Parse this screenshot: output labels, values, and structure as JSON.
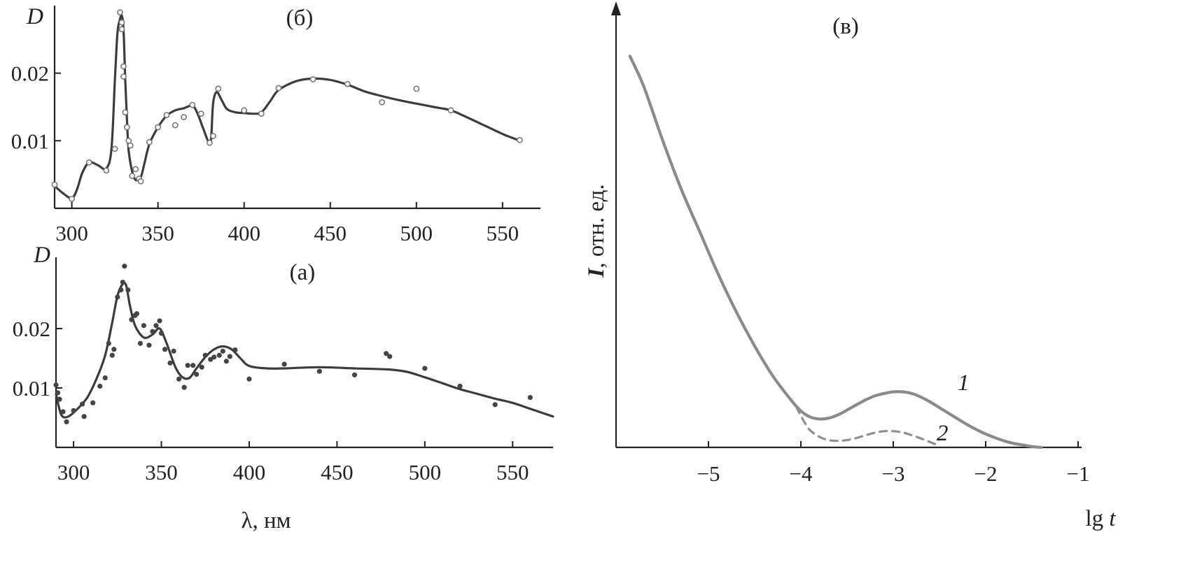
{
  "chart_data": [
    {
      "type": "line",
      "panel_label": "(б)",
      "ylabel": "D",
      "xlim": [
        290,
        572
      ],
      "ylim": [
        0,
        0.03
      ],
      "x_ticks": [
        300,
        350,
        400,
        450,
        500,
        550
      ],
      "y_ticks": [
        0.01,
        0.02
      ],
      "y_tick_labels": [
        "0.01",
        "0.02"
      ],
      "marker": "open-circle",
      "curve": {
        "x": [
          290,
          295,
          300,
          303,
          306,
          310,
          315,
          320,
          323,
          325,
          326.5,
          328,
          329,
          330,
          331,
          332,
          333,
          335,
          337,
          340,
          342,
          345,
          350,
          355,
          360,
          365,
          370,
          373,
          376,
          380,
          381,
          382,
          384,
          387,
          390,
          395,
          400,
          405,
          410,
          415,
          420,
          430,
          440,
          450,
          460,
          470,
          480,
          490,
          500,
          510,
          520,
          530,
          540,
          550,
          560
        ],
        "y": [
          0.0033,
          0.0022,
          0.0015,
          0.0028,
          0.0052,
          0.0068,
          0.0064,
          0.0059,
          0.0088,
          0.019,
          0.026,
          0.028,
          0.0285,
          0.0265,
          0.019,
          0.013,
          0.0085,
          0.0055,
          0.0042,
          0.0046,
          0.0065,
          0.0095,
          0.012,
          0.0137,
          0.0145,
          0.0148,
          0.0152,
          0.014,
          0.012,
          0.0095,
          0.011,
          0.0155,
          0.0172,
          0.016,
          0.0147,
          0.0142,
          0.0141,
          0.014,
          0.0142,
          0.0158,
          0.0175,
          0.0188,
          0.0192,
          0.019,
          0.0183,
          0.0173,
          0.0166,
          0.016,
          0.0155,
          0.015,
          0.0145,
          0.0134,
          0.0122,
          0.011,
          0.01
        ]
      },
      "points": {
        "x": [
          290,
          300,
          310,
          320,
          325,
          328,
          329,
          329,
          330,
          330,
          331,
          332,
          333,
          334,
          335,
          337,
          339,
          340,
          345,
          350,
          355,
          360,
          365,
          370,
          375,
          380,
          382,
          385,
          400,
          410,
          420,
          440,
          460,
          480,
          500,
          520,
          560
        ],
        "y": [
          0.0035,
          0.0014,
          0.0068,
          0.0056,
          0.0088,
          0.029,
          0.0275,
          0.0265,
          0.021,
          0.0195,
          0.0142,
          0.012,
          0.01,
          0.0093,
          0.0048,
          0.0058,
          0.0044,
          0.004,
          0.0098,
          0.012,
          0.0138,
          0.0123,
          0.0135,
          0.0153,
          0.014,
          0.0097,
          0.0107,
          0.0177,
          0.0145,
          0.014,
          0.0178,
          0.0191,
          0.0184,
          0.0157,
          0.0177,
          0.0145,
          0.0101
        ]
      }
    },
    {
      "type": "line",
      "panel_label": "(а)",
      "ylabel": "D",
      "xlabel": "λ, нм",
      "xlim": [
        290,
        573
      ],
      "ylim": [
        0,
        0.032
      ],
      "x_ticks": [
        300,
        350,
        400,
        450,
        500,
        550
      ],
      "y_ticks": [
        0.01,
        0.02
      ],
      "y_tick_labels": [
        "0.01",
        "0.02"
      ],
      "marker": "filled-dot",
      "curve": {
        "x": [
          290,
          293,
          297,
          303,
          308,
          313,
          318,
          322,
          325,
          328,
          330,
          332,
          335,
          340,
          345,
          349,
          353,
          358,
          362,
          366,
          370,
          375,
          380,
          385,
          390,
          395,
          400,
          410,
          420,
          440,
          460,
          480,
          490,
          500,
          510,
          520,
          530,
          540,
          550,
          560,
          573
        ],
        "y": [
          0.009,
          0.0055,
          0.0052,
          0.0067,
          0.0085,
          0.0115,
          0.0155,
          0.021,
          0.0255,
          0.0275,
          0.0272,
          0.024,
          0.0205,
          0.0185,
          0.019,
          0.02,
          0.0175,
          0.0135,
          0.0118,
          0.0117,
          0.0133,
          0.0152,
          0.0165,
          0.017,
          0.0165,
          0.015,
          0.0137,
          0.0133,
          0.0133,
          0.0135,
          0.0133,
          0.0131,
          0.0127,
          0.0118,
          0.0108,
          0.0098,
          0.009,
          0.0082,
          0.0075,
          0.0065,
          0.0052
        ]
      },
      "points": {
        "x": [
          290,
          291,
          292,
          294,
          296,
          300,
          305,
          306,
          311,
          315,
          318,
          320,
          322,
          323,
          325,
          327,
          328,
          329,
          331,
          333,
          335,
          336,
          338,
          340,
          343,
          345,
          347,
          349,
          350,
          352,
          355,
          357,
          360,
          363,
          365,
          368,
          370,
          373,
          375,
          378,
          380,
          383,
          385,
          387,
          389,
          392,
          400,
          420,
          440,
          460,
          478,
          480,
          500,
          520,
          540,
          560
        ],
        "y": [
          0.0105,
          0.0092,
          0.0081,
          0.006,
          0.0043,
          0.0062,
          0.0073,
          0.0052,
          0.0075,
          0.0103,
          0.0117,
          0.0175,
          0.0155,
          0.0165,
          0.0253,
          0.0265,
          0.0278,
          0.0305,
          0.0265,
          0.0215,
          0.0222,
          0.0225,
          0.0175,
          0.0205,
          0.0172,
          0.0195,
          0.0205,
          0.0213,
          0.0192,
          0.0165,
          0.0142,
          0.0162,
          0.0115,
          0.0101,
          0.0138,
          0.0138,
          0.0123,
          0.0135,
          0.0155,
          0.0148,
          0.0152,
          0.0155,
          0.0162,
          0.0145,
          0.0153,
          0.0164,
          0.0115,
          0.014,
          0.0128,
          0.0122,
          0.0158,
          0.0153,
          0.0133,
          0.0103,
          0.0072,
          0.0084
        ]
      }
    },
    {
      "type": "line",
      "panel_label": "(в)",
      "ylabel_italic": "I",
      "ylabel_rest": ", отн. ед.",
      "xlabel_prefix": "lg ",
      "xlabel_italic": "t",
      "xlim": [
        -6.05,
        -1.0
      ],
      "ylim": [
        0,
        1
      ],
      "x_ticks": [
        -5,
        -4,
        -3,
        -2,
        -1
      ],
      "x_tick_labels": [
        "−5",
        "−4",
        "−3",
        "−2",
        "−1"
      ],
      "series": [
        {
          "name": "1",
          "style": "solid",
          "x": [
            -5.85,
            -5.7,
            -5.5,
            -5.3,
            -5.1,
            -4.9,
            -4.7,
            -4.5,
            -4.3,
            -4.1,
            -4.0,
            -3.9,
            -3.8,
            -3.7,
            -3.6,
            -3.5,
            -3.4,
            -3.3,
            -3.2,
            -3.1,
            -3.0,
            -2.9,
            -2.8,
            -2.7,
            -2.6,
            -2.5,
            -2.4,
            -2.3,
            -2.2,
            -2.1,
            -2.0,
            -1.9,
            -1.8,
            -1.7,
            -1.6,
            -1.5,
            -1.4
          ],
          "y": [
            0.965,
            0.89,
            0.76,
            0.64,
            0.535,
            0.43,
            0.335,
            0.25,
            0.175,
            0.115,
            0.09,
            0.075,
            0.07,
            0.072,
            0.08,
            0.092,
            0.105,
            0.117,
            0.127,
            0.133,
            0.137,
            0.137,
            0.133,
            0.124,
            0.112,
            0.098,
            0.084,
            0.07,
            0.056,
            0.044,
            0.033,
            0.024,
            0.016,
            0.01,
            0.006,
            0.002,
            0.0
          ]
        },
        {
          "name": "2",
          "style": "dashed",
          "x": [
            -4.05,
            -4.0,
            -3.95,
            -3.9,
            -3.8,
            -3.7,
            -3.6,
            -3.5,
            -3.4,
            -3.3,
            -3.2,
            -3.1,
            -3.0,
            -2.9,
            -2.8,
            -2.7,
            -2.6,
            -2.5
          ],
          "y": [
            0.1,
            0.078,
            0.058,
            0.042,
            0.026,
            0.018,
            0.016,
            0.018,
            0.023,
            0.03,
            0.036,
            0.04,
            0.04,
            0.037,
            0.03,
            0.022,
            0.013,
            0.004
          ]
        }
      ]
    }
  ]
}
